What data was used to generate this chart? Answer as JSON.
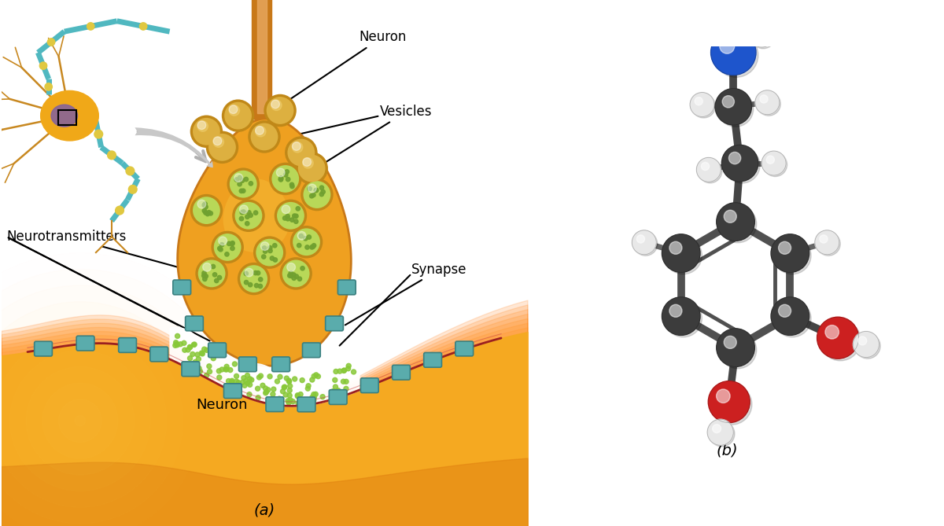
{
  "panel_a_label": "(a)",
  "panel_b_label": "(b)",
  "background_color": "#ffffff",
  "labels": {
    "neuron_top": "Neuron",
    "neurotransmitters": "Neurotransmitters",
    "vesicles": "Vesicles",
    "synapse": "Synapse",
    "neuron_bottom": "Neuron"
  },
  "label_fontsize": 12,
  "panel_label_fontsize": 14,
  "figsize": [
    12.0,
    6.69
  ],
  "dpi": 100,
  "bouton_color": "#F0A020",
  "bouton_highlight": "#F8C840",
  "bouton_border": "#C87818",
  "post_neuron_color": "#F5B020",
  "post_neuron_dark": "#E08010",
  "membrane_color": "#A03030",
  "cleft_color": "#FFFFFF",
  "receptor_color": "#5AACAC",
  "receptor_edge": "#3A8888",
  "vesicle_outer": "#D4A030",
  "vesicle_inner": "#C8E060",
  "vesicle_dots": "#80B840",
  "nt_dot_color": "#90C840",
  "C_color": "#3C3C3C",
  "H_color": "#E8E8E8",
  "N_color": "#1E55CC",
  "O_color": "#CC2020",
  "bond_color": "#505050"
}
